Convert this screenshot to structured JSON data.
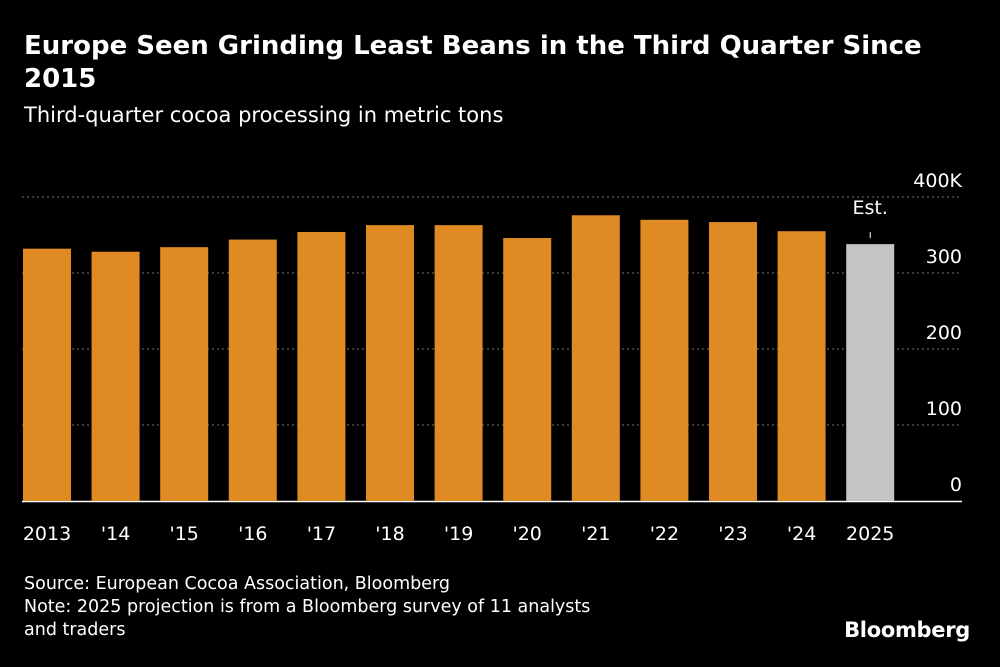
{
  "title": "Europe Seen Grinding Least Beans in the Third Quarter Since 2015",
  "subtitle": "Third-quarter cocoa processing in metric tons",
  "source": "Source: European Cocoa Association, Bloomberg",
  "note_line1": "Note: 2025 projection is from a Bloomberg survey of 11 analysts",
  "note_line2": "and traders",
  "logo": "Bloomberg",
  "colors": {
    "background": "#000000",
    "actual_bar": "#e08a23",
    "estimate_bar": "#c4c4c4",
    "grid": "#777777",
    "text": "#ffffff"
  },
  "chart_data": {
    "type": "bar",
    "categories": [
      "2013",
      "'14",
      "'15",
      "'16",
      "'17",
      "'18",
      "'19",
      "'20",
      "'21",
      "'22",
      "'23",
      "'24",
      "2025"
    ],
    "values": [
      332,
      328,
      334,
      344,
      354,
      363,
      363,
      346,
      376,
      370,
      367,
      355,
      338
    ],
    "estimate_index": 12,
    "estimate_label": "Est.",
    "ylim": [
      0,
      400
    ],
    "yticks": [
      0,
      100,
      200,
      300,
      400
    ],
    "ytick_labels": [
      "0",
      "100",
      "200",
      "300",
      "400K"
    ],
    "grid": true,
    "y_axis_side": "right"
  }
}
